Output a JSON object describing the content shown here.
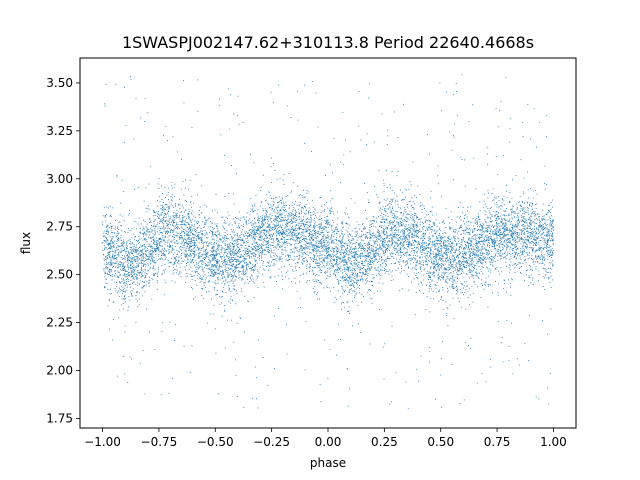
{
  "chart_data": {
    "type": "scatter",
    "title": "1SWASPJ002147.62+310113.8 Period 22640.4668s",
    "xlabel": "phase",
    "ylabel": "flux",
    "xlim": [
      -1.1,
      1.1
    ],
    "ylim": [
      1.7,
      3.63
    ],
    "x_ticks": [
      -1.0,
      -0.75,
      -0.5,
      -0.25,
      0.0,
      0.25,
      0.5,
      0.75,
      1.0
    ],
    "x_tick_labels": [
      "−1.00",
      "−0.75",
      "−0.50",
      "−0.25",
      "0.00",
      "0.25",
      "0.50",
      "0.75",
      "1.00"
    ],
    "y_ticks": [
      1.75,
      2.0,
      2.25,
      2.5,
      2.75,
      3.0,
      3.25,
      3.5
    ],
    "y_tick_labels": [
      "1.75",
      "2.00",
      "2.25",
      "2.50",
      "2.75",
      "3.00",
      "3.25",
      "3.50"
    ],
    "grid": false,
    "legend": "none",
    "marker_color": "#1f77b4",
    "phase_range": [
      -1.0,
      1.0
    ],
    "flux_profile": {
      "phase": [
        -1.0,
        -0.875,
        -0.7,
        -0.45,
        -0.2,
        0.0,
        0.1,
        0.3,
        0.55,
        0.8,
        1.0
      ],
      "flux": [
        2.62,
        2.56,
        2.72,
        2.58,
        2.74,
        2.65,
        2.55,
        2.72,
        2.58,
        2.72,
        2.68
      ]
    },
    "flux_scatter_sigma": 0.1,
    "flux_outlier_range": [
      1.8,
      3.55
    ]
  }
}
